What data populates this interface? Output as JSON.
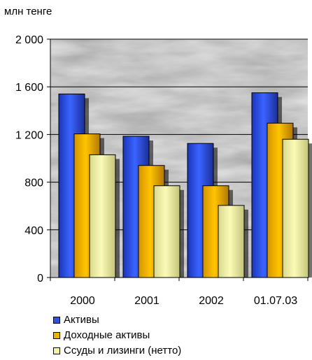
{
  "chart_data": {
    "type": "bar",
    "unit_label": "млн тенге",
    "categories": [
      "2000",
      "2001",
      "2002",
      "01.07.03"
    ],
    "series": [
      {
        "name": "Активы",
        "color": "#2f52e0",
        "values": [
          1540,
          1185,
          1125,
          1550
        ]
      },
      {
        "name": "Доходные активы",
        "color": "#f0b400",
        "values": [
          1205,
          940,
          770,
          1295
        ]
      },
      {
        "name": "Ссуды и лизинги (нетто)",
        "color": "#f3f3a6",
        "values": [
          1030,
          770,
          605,
          1160
        ]
      }
    ],
    "yticks": [
      "0",
      "400",
      "800",
      "1 200",
      "1 600",
      "2 000"
    ],
    "ylim": [
      0,
      2000
    ],
    "grid": true,
    "legend_position": "bottom",
    "background": "marble texture"
  }
}
